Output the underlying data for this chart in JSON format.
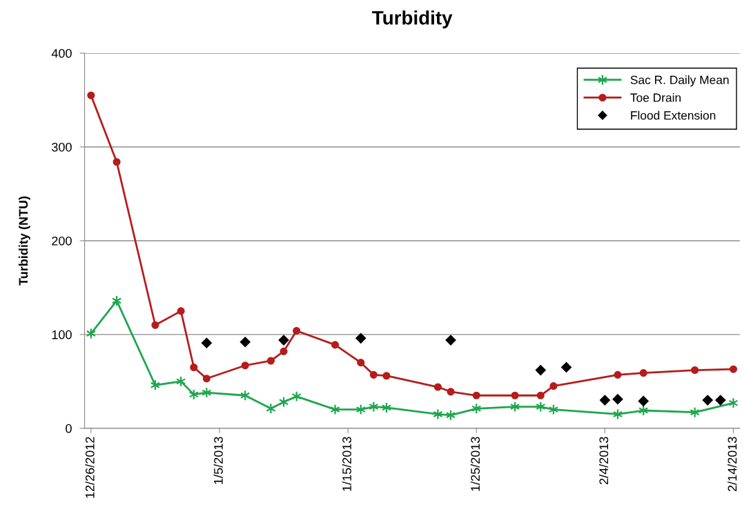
{
  "chart_data": {
    "type": "line",
    "title": "Turbidity",
    "ylabel": "Turbidity (NTU)",
    "xlim": [
      "2012-12-25T12:00",
      "2013-02-14T12:00"
    ],
    "xticks": [
      {
        "value": "2012-12-26",
        "label": "12/26/2012"
      },
      {
        "value": "2013-01-05",
        "label": "1/5/2013"
      },
      {
        "value": "2013-01-15",
        "label": "1/15/2013"
      },
      {
        "value": "2013-01-25",
        "label": "1/25/2013"
      },
      {
        "value": "2013-02-04",
        "label": "2/4/2013"
      },
      {
        "value": "2013-02-14",
        "label": "2/14/2013"
      }
    ],
    "ylim": [
      0,
      400
    ],
    "yticks": [
      0,
      100,
      200,
      300,
      400
    ],
    "grid": "y",
    "legend": "top right",
    "series": [
      {
        "name": "Sac R. Daily Mean",
        "color": "#1fa64e",
        "marker": "cross",
        "line_style": "solid",
        "x": [
          "2012-12-26",
          "2012-12-28",
          "2012-12-31",
          "2013-01-02",
          "2013-01-03",
          "2013-01-04",
          "2013-01-07",
          "2013-01-09",
          "2013-01-10",
          "2013-01-11",
          "2013-01-14",
          "2013-01-16",
          "2013-01-17",
          "2013-01-18",
          "2013-01-22",
          "2013-01-23",
          "2013-01-25",
          "2013-01-28",
          "2013-01-30",
          "2013-01-31",
          "2013-02-05",
          "2013-02-07",
          "2013-02-11",
          "2013-02-14"
        ],
        "values": [
          101,
          136,
          46,
          50,
          36,
          38,
          35,
          21,
          28,
          34,
          20,
          20,
          23,
          22,
          15,
          14,
          21,
          23,
          23,
          20,
          15,
          19,
          17,
          27
        ]
      },
      {
        "name": "Toe Drain",
        "color": "#b51c1c",
        "marker": "circle",
        "line_style": "solid",
        "x": [
          "2012-12-26",
          "2012-12-28",
          "2012-12-31",
          "2013-01-02",
          "2013-01-03",
          "2013-01-04",
          "2013-01-07",
          "2013-01-09",
          "2013-01-10",
          "2013-01-11",
          "2013-01-14",
          "2013-01-16",
          "2013-01-17",
          "2013-01-18",
          "2013-01-22",
          "2013-01-23",
          "2013-01-25",
          "2013-01-28",
          "2013-01-30",
          "2013-01-31",
          "2013-02-05",
          "2013-02-07",
          "2013-02-11",
          "2013-02-14"
        ],
        "values": [
          355,
          284,
          110,
          125,
          65,
          53,
          67,
          72,
          82,
          104,
          89,
          70,
          57,
          56,
          44,
          39,
          35,
          35,
          35,
          45,
          57,
          59,
          62,
          63
        ]
      },
      {
        "name": "Flood Extension",
        "type": "scatter",
        "color": "#000000",
        "marker": "diamond",
        "x": [
          "2013-01-04",
          "2013-01-07",
          "2013-01-10",
          "2013-01-16",
          "2013-01-23",
          "2013-01-30",
          "2013-02-01",
          "2013-02-04",
          "2013-02-05",
          "2013-02-07",
          "2013-02-12",
          "2013-02-13"
        ],
        "values": [
          91,
          92,
          94,
          96,
          94,
          62,
          65,
          30,
          31,
          29,
          30,
          30
        ]
      }
    ]
  }
}
